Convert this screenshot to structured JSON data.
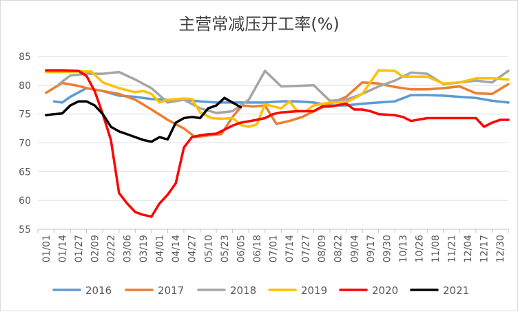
{
  "chart_data": {
    "type": "line",
    "title": "主营常减压开工率(%)",
    "xlabel": "",
    "ylabel": "",
    "ylim": [
      55,
      85
    ],
    "yticks": [
      "55",
      "60",
      "65",
      "70",
      "75",
      "80",
      "85"
    ],
    "categories": [
      "01/01",
      "01/14",
      "01/27",
      "02/09",
      "02/22",
      "03/06",
      "03/19",
      "04/01",
      "04/14",
      "04/27",
      "05/10",
      "05/23",
      "06/05",
      "06/18",
      "07/01",
      "07/14",
      "07/27",
      "08/09",
      "08/22",
      "09/04",
      "09/17",
      "09/30",
      "10/13",
      "10/26",
      "11/08",
      "11/21",
      "12/04",
      "12/17",
      "12/30"
    ],
    "grid": "horizontal",
    "legend_position": "bottom",
    "series": [
      {
        "name": "2016",
        "color": "#5B9BD5",
        "points": [
          [
            1.0,
            77.2
          ],
          [
            1.5,
            77.0
          ],
          [
            2.0,
            78.0
          ],
          [
            3.0,
            79.5
          ],
          [
            4.0,
            79.0
          ],
          [
            5.0,
            78.2
          ],
          [
            6.0,
            78.0
          ],
          [
            7.0,
            77.6
          ],
          [
            8.0,
            77.5
          ],
          [
            9.0,
            77.5
          ],
          [
            10.0,
            77.2
          ],
          [
            11.0,
            77.0
          ],
          [
            12.0,
            77.0
          ],
          [
            13.0,
            77.0
          ],
          [
            14.0,
            77.0
          ],
          [
            15.0,
            77.2
          ],
          [
            16.0,
            77.2
          ],
          [
            17.0,
            77.0
          ],
          [
            18.0,
            76.5
          ],
          [
            19.0,
            76.5
          ],
          [
            20.0,
            76.8
          ],
          [
            21.0,
            77.0
          ],
          [
            22.0,
            77.2
          ],
          [
            23.0,
            78.3
          ],
          [
            24.0,
            78.3
          ],
          [
            25.0,
            78.2
          ],
          [
            26.0,
            78.0
          ],
          [
            27.0,
            77.8
          ],
          [
            28.0,
            77.3
          ],
          [
            29.0,
            77.0
          ]
        ]
      },
      {
        "name": "2017",
        "color": "#ED7D31",
        "points": [
          [
            0.5,
            78.7
          ],
          [
            1.5,
            80.4
          ],
          [
            2.5,
            79.9
          ],
          [
            3.0,
            79.5
          ],
          [
            4.0,
            79.0
          ],
          [
            5.0,
            78.5
          ],
          [
            6.0,
            77.5
          ],
          [
            7.0,
            75.8
          ],
          [
            8.0,
            74.0
          ],
          [
            9.0,
            72.5
          ],
          [
            9.7,
            71.0
          ],
          [
            10.5,
            71.3
          ],
          [
            11.3,
            71.5
          ],
          [
            12.0,
            74.5
          ],
          [
            12.6,
            76.5
          ],
          [
            13.3,
            76.3
          ],
          [
            14.0,
            76.5
          ],
          [
            14.7,
            73.3
          ],
          [
            15.5,
            73.8
          ],
          [
            16.3,
            74.5
          ],
          [
            17.0,
            75.5
          ],
          [
            18.0,
            76.8
          ],
          [
            19.0,
            78.0
          ],
          [
            20.0,
            80.5
          ],
          [
            21.0,
            80.3
          ],
          [
            22.0,
            79.7
          ],
          [
            23.0,
            79.3
          ],
          [
            24.0,
            79.3
          ],
          [
            25.0,
            79.5
          ],
          [
            26.0,
            79.8
          ],
          [
            27.0,
            78.6
          ],
          [
            28.0,
            78.5
          ],
          [
            29.0,
            80.2
          ]
        ]
      },
      {
        "name": "2018",
        "color": "#A5A5A5",
        "points": [
          [
            1.3,
            80.2
          ],
          [
            2.0,
            81.7
          ],
          [
            3.0,
            82.0
          ],
          [
            4.0,
            82.0
          ],
          [
            5.0,
            82.3
          ],
          [
            6.0,
            81.0
          ],
          [
            7.0,
            79.5
          ],
          [
            8.0,
            77.0
          ],
          [
            9.0,
            77.5
          ],
          [
            10.0,
            76.0
          ],
          [
            11.0,
            75.2
          ],
          [
            12.0,
            75.5
          ],
          [
            13.0,
            77.5
          ],
          [
            14.0,
            82.5
          ],
          [
            15.0,
            79.8
          ],
          [
            16.0,
            79.9
          ],
          [
            17.0,
            80.0
          ],
          [
            18.0,
            77.3
          ],
          [
            19.0,
            77.5
          ],
          [
            20.0,
            78.5
          ],
          [
            21.0,
            79.8
          ],
          [
            22.0,
            80.8
          ],
          [
            23.0,
            82.2
          ],
          [
            24.0,
            82.0
          ],
          [
            25.0,
            80.2
          ],
          [
            26.0,
            80.5
          ],
          [
            27.0,
            80.8
          ],
          [
            28.0,
            80.5
          ],
          [
            29.0,
            82.5
          ]
        ]
      },
      {
        "name": "2019",
        "color": "#FFC000",
        "points": [
          [
            0.5,
            82.3
          ],
          [
            1.5,
            82.3
          ],
          [
            2.5,
            82.4
          ],
          [
            3.3,
            82.4
          ],
          [
            4.0,
            80.5
          ],
          [
            5.0,
            79.5
          ],
          [
            6.0,
            78.8
          ],
          [
            6.5,
            79.0
          ],
          [
            7.0,
            78.5
          ],
          [
            7.5,
            77.0
          ],
          [
            8.0,
            77.5
          ],
          [
            9.0,
            77.7
          ],
          [
            9.5,
            77.6
          ],
          [
            10.0,
            75.3
          ],
          [
            10.7,
            74.3
          ],
          [
            11.3,
            74.2
          ],
          [
            12.0,
            74.3
          ],
          [
            12.6,
            73.0
          ],
          [
            13.0,
            72.8
          ],
          [
            13.5,
            73.2
          ],
          [
            14.0,
            76.7
          ],
          [
            15.0,
            76.0
          ],
          [
            15.5,
            77.2
          ],
          [
            16.0,
            75.5
          ],
          [
            16.5,
            75.5
          ],
          [
            17.0,
            76.5
          ],
          [
            18.0,
            77.0
          ],
          [
            19.0,
            77.0
          ],
          [
            20.0,
            78.5
          ],
          [
            21.0,
            82.6
          ],
          [
            22.0,
            82.5
          ],
          [
            22.5,
            81.5
          ],
          [
            23.0,
            81.5
          ],
          [
            24.0,
            81.5
          ],
          [
            25.0,
            80.3
          ],
          [
            26.0,
            80.5
          ],
          [
            27.0,
            81.2
          ],
          [
            28.0,
            81.2
          ],
          [
            29.0,
            81.0
          ]
        ]
      },
      {
        "name": "2020",
        "color": "#FF0000",
        "points": [
          [
            0.5,
            82.6
          ],
          [
            1.5,
            82.6
          ],
          [
            2.5,
            82.5
          ],
          [
            3.0,
            81.6
          ],
          [
            3.5,
            79.0
          ],
          [
            4.0,
            75.0
          ],
          [
            4.5,
            70.5
          ],
          [
            5.0,
            61.3
          ],
          [
            5.5,
            59.5
          ],
          [
            6.0,
            58.0
          ],
          [
            6.5,
            57.5
          ],
          [
            7.0,
            57.2
          ],
          [
            7.5,
            59.5
          ],
          [
            8.0,
            61.0
          ],
          [
            8.5,
            63.0
          ],
          [
            9.0,
            69.2
          ],
          [
            9.5,
            71.0
          ],
          [
            10.0,
            71.3
          ],
          [
            10.5,
            71.5
          ],
          [
            11.0,
            71.6
          ],
          [
            11.5,
            72.3
          ],
          [
            12.0,
            73.0
          ],
          [
            12.5,
            73.5
          ],
          [
            13.5,
            74.0
          ],
          [
            14.0,
            74.3
          ],
          [
            14.5,
            75.0
          ],
          [
            15.0,
            75.3
          ],
          [
            16.0,
            75.5
          ],
          [
            17.0,
            75.5
          ],
          [
            17.5,
            76.3
          ],
          [
            18.0,
            76.3
          ],
          [
            19.0,
            76.8
          ],
          [
            19.5,
            75.8
          ],
          [
            20.0,
            75.8
          ],
          [
            20.5,
            75.5
          ],
          [
            21.0,
            75.0
          ],
          [
            22.0,
            74.8
          ],
          [
            22.5,
            74.5
          ],
          [
            23.0,
            73.8
          ],
          [
            24.0,
            74.3
          ],
          [
            25.0,
            74.3
          ],
          [
            26.0,
            74.3
          ],
          [
            27.0,
            74.3
          ],
          [
            27.5,
            72.8
          ],
          [
            28.0,
            73.5
          ],
          [
            28.5,
            74.0
          ],
          [
            29.0,
            74.0
          ]
        ]
      },
      {
        "name": "2021",
        "color": "#000000",
        "points": [
          [
            0.5,
            74.8
          ],
          [
            1.0,
            75.0
          ],
          [
            1.5,
            75.1
          ],
          [
            2.0,
            76.5
          ],
          [
            2.5,
            77.2
          ],
          [
            3.0,
            77.2
          ],
          [
            3.5,
            76.5
          ],
          [
            4.0,
            75.0
          ],
          [
            4.5,
            72.8
          ],
          [
            5.0,
            72.0
          ],
          [
            5.5,
            71.5
          ],
          [
            6.0,
            71.0
          ],
          [
            6.5,
            70.5
          ],
          [
            7.0,
            70.2
          ],
          [
            7.5,
            71.0
          ],
          [
            8.0,
            70.6
          ],
          [
            8.5,
            73.5
          ],
          [
            9.0,
            74.3
          ],
          [
            9.5,
            74.5
          ],
          [
            10.0,
            74.3
          ],
          [
            10.5,
            76.0
          ],
          [
            11.0,
            76.5
          ],
          [
            11.5,
            77.8
          ],
          [
            12.0,
            77.0
          ],
          [
            12.5,
            76.2
          ]
        ]
      }
    ]
  }
}
